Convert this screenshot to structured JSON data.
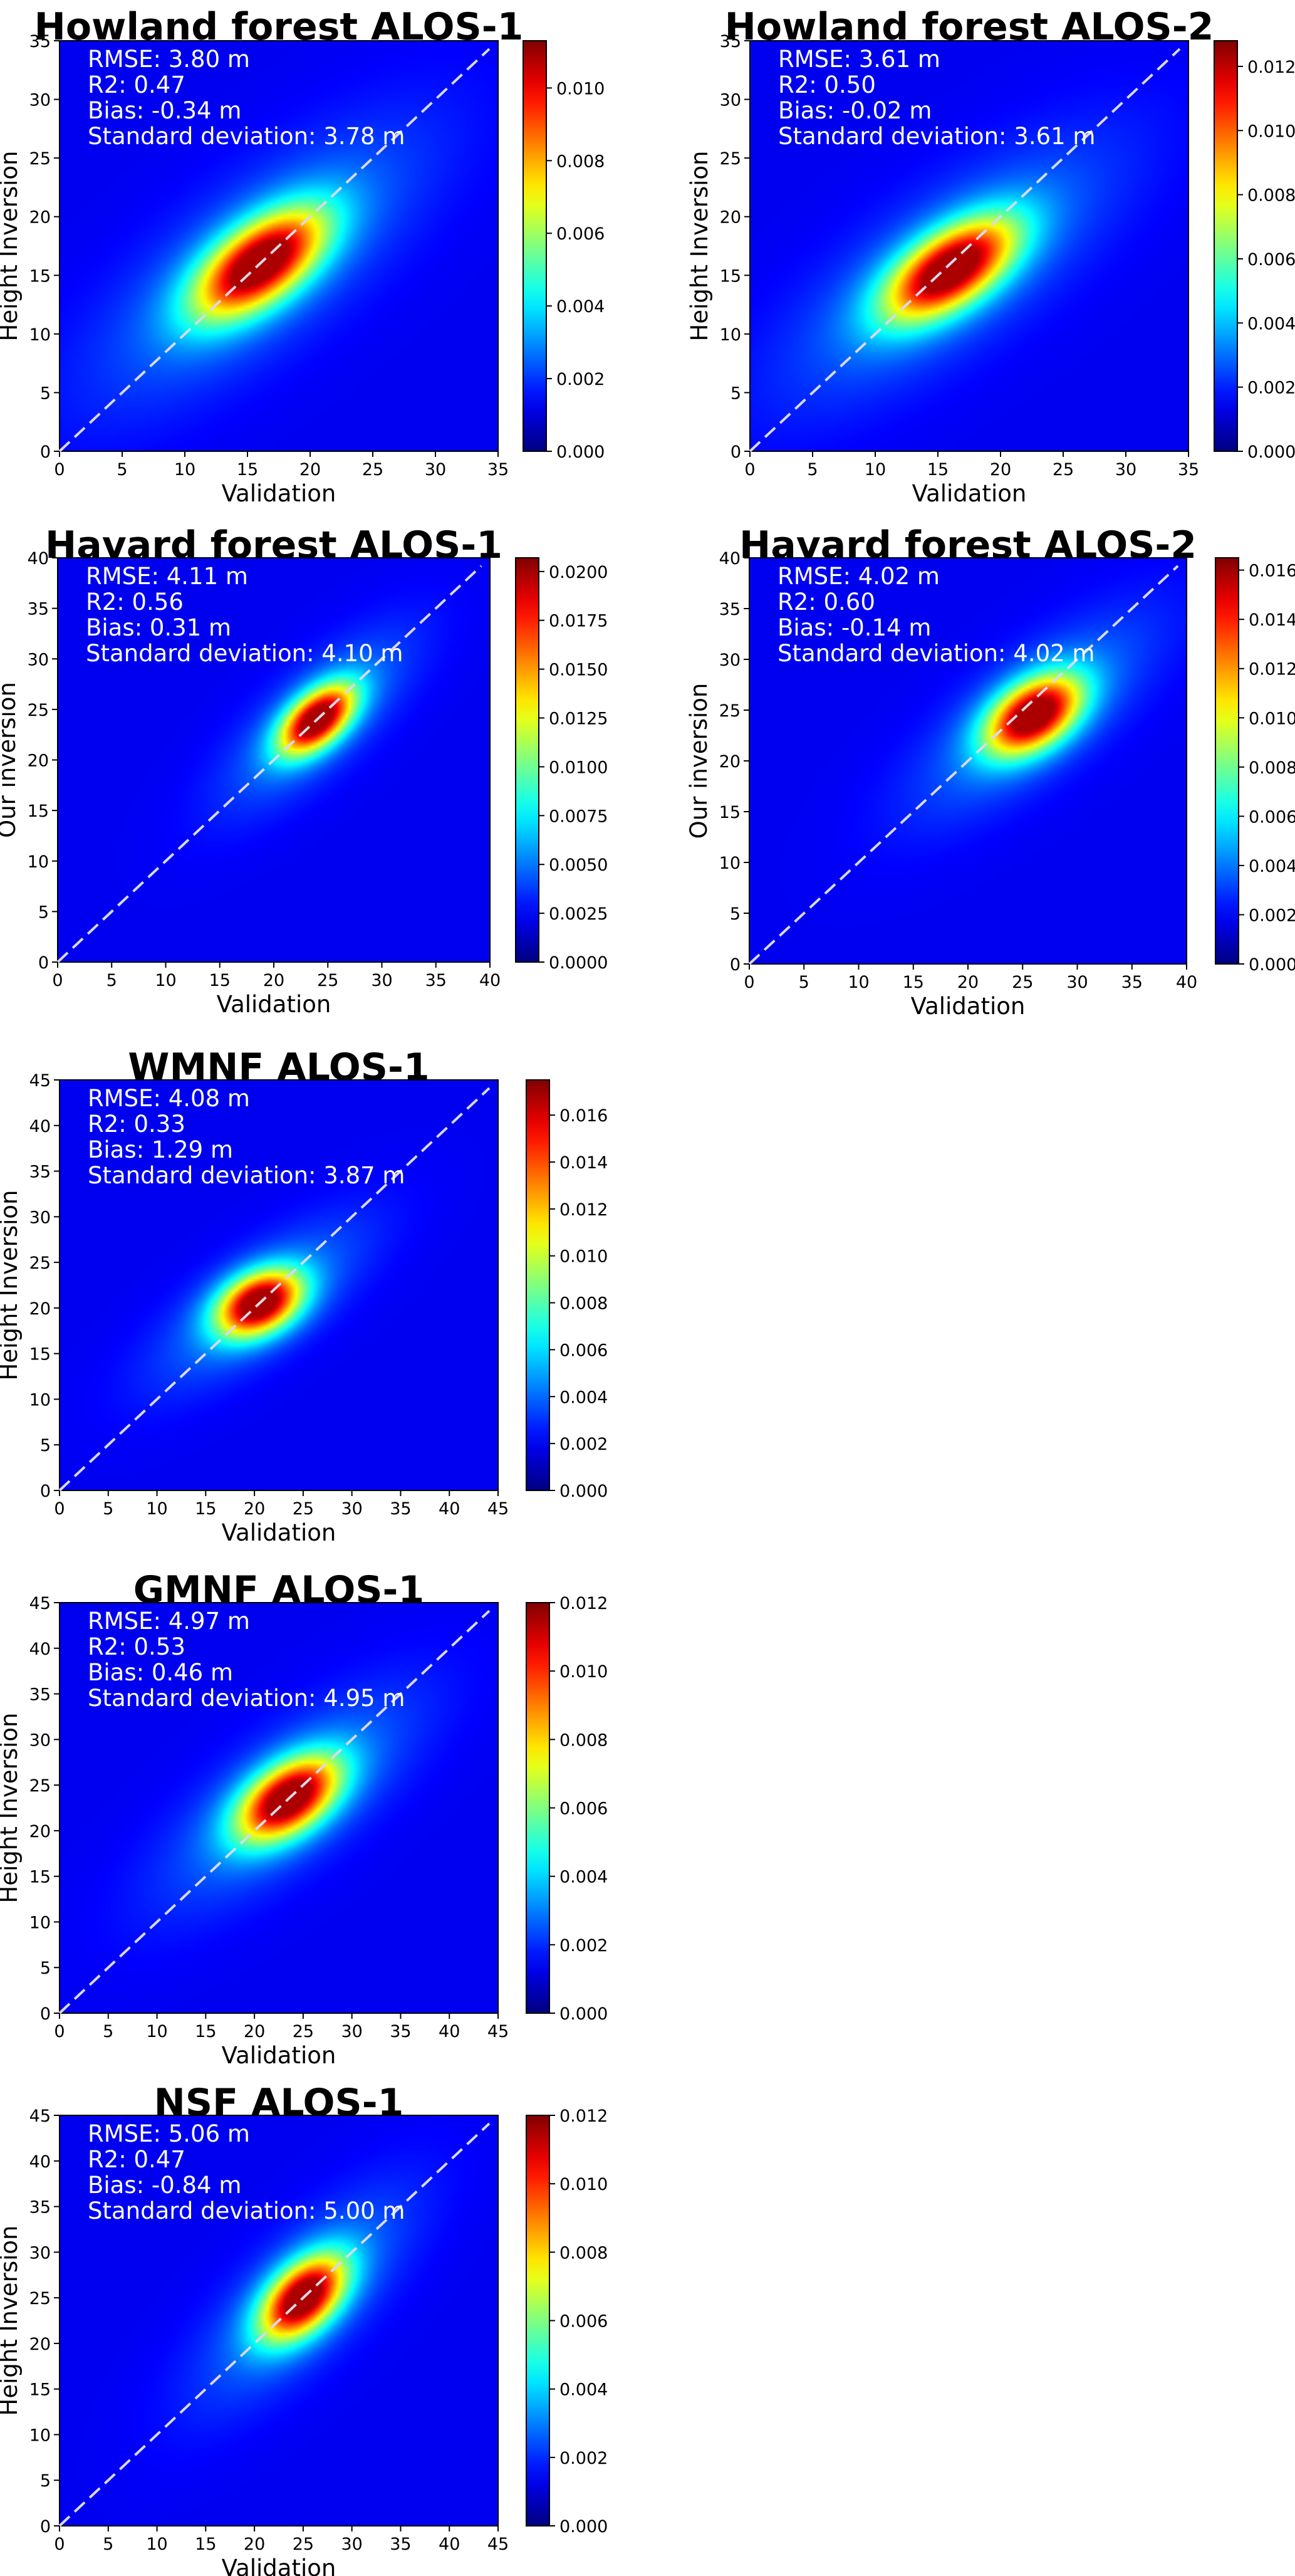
{
  "chart_data": [
    {
      "type": "heatmap",
      "title": "Howland forest ALOS-1",
      "xlabel": "Validation",
      "ylabel": "Height Inversion",
      "xlim": [
        0,
        35
      ],
      "ylim": [
        0,
        35
      ],
      "xticks": [
        "0",
        "5",
        "10",
        "15",
        "20",
        "25",
        "30",
        "35"
      ],
      "yticks": [
        "0",
        "5",
        "10",
        "15",
        "20",
        "25",
        "30",
        "35"
      ],
      "colorbar": {
        "min": 0,
        "max": 0.0113,
        "ticks": [
          "0.000",
          "0.002",
          "0.004",
          "0.006",
          "0.008",
          "0.010"
        ]
      },
      "stats": [
        "RMSE: 3.80 m",
        "R2: 0.47",
        "Bias: -0.34 m",
        "Standard deviation: 3.78 m"
      ],
      "identity_line": true,
      "density_peak": {
        "x": 16,
        "y": 16,
        "sx": 3.6,
        "sy": 3.2,
        "rho": 0.6
      }
    },
    {
      "type": "heatmap",
      "title": "Howland forest ALOS-2",
      "xlabel": "Validation",
      "ylabel": "Height Inversion",
      "xlim": [
        0,
        35
      ],
      "ylim": [
        0,
        35
      ],
      "xticks": [
        "0",
        "5",
        "10",
        "15",
        "20",
        "25",
        "30",
        "35"
      ],
      "yticks": [
        "0",
        "5",
        "10",
        "15",
        "20",
        "25",
        "30",
        "35"
      ],
      "colorbar": {
        "min": 0,
        "max": 0.0128,
        "ticks": [
          "0.000",
          "0.002",
          "0.004",
          "0.006",
          "0.008",
          "0.010",
          "0.012"
        ]
      },
      "stats": [
        "RMSE: 3.61 m",
        "R2: 0.50",
        "Bias: -0.02 m",
        "Standard deviation: 3.61 m"
      ],
      "identity_line": true,
      "density_peak": {
        "x": 16,
        "y": 15.5,
        "sx": 3.6,
        "sy": 3.0,
        "rho": 0.6
      }
    },
    {
      "type": "heatmap",
      "title": "Havard forest ALOS-1",
      "xlabel": "Validation",
      "ylabel": "Our inversion",
      "xlim": [
        0,
        40
      ],
      "ylim": [
        0,
        40
      ],
      "xticks": [
        "0",
        "5",
        "10",
        "15",
        "20",
        "25",
        "30",
        "35",
        "40"
      ],
      "yticks": [
        "0",
        "5",
        "10",
        "15",
        "20",
        "25",
        "30",
        "35",
        "40"
      ],
      "colorbar": {
        "min": 0,
        "max": 0.0207,
        "ticks": [
          "0.0000",
          "0.0025",
          "0.0050",
          "0.0075",
          "0.0100",
          "0.0125",
          "0.0150",
          "0.0175",
          "0.0200"
        ]
      },
      "stats": [
        "RMSE: 4.11 m",
        "R2: 0.56",
        "Bias: 0.31 m",
        "Standard deviation: 4.10 m"
      ],
      "identity_line": true,
      "density_peak": {
        "x": 24,
        "y": 24,
        "sx": 2.4,
        "sy": 2.4,
        "rho": 0.55
      }
    },
    {
      "type": "heatmap",
      "title": "Havard forest ALOS-2",
      "xlabel": "Validation",
      "ylabel": "Our inversion",
      "xlim": [
        0,
        40
      ],
      "ylim": [
        0,
        40
      ],
      "xticks": [
        "0",
        "5",
        "10",
        "15",
        "20",
        "25",
        "30",
        "35",
        "40"
      ],
      "yticks": [
        "0",
        "5",
        "10",
        "15",
        "20",
        "25",
        "30",
        "35",
        "40"
      ],
      "colorbar": {
        "min": 0,
        "max": 0.0165,
        "ticks": [
          "0.000",
          "0.002",
          "0.004",
          "0.006",
          "0.008",
          "0.010",
          "0.012",
          "0.014",
          "0.016"
        ]
      },
      "stats": [
        "RMSE: 4.02 m",
        "R2: 0.60",
        "Bias: -0.14 m",
        "Standard deviation: 4.02 m"
      ],
      "identity_line": true,
      "density_peak": {
        "x": 26,
        "y": 24.5,
        "sx": 3.0,
        "sy": 2.7,
        "rho": 0.45
      }
    },
    {
      "type": "heatmap",
      "title": "WMNF ALOS-1",
      "xlabel": "Validation",
      "ylabel": "Height Inversion",
      "xlim": [
        0,
        45
      ],
      "ylim": [
        0,
        45
      ],
      "xticks": [
        "0",
        "5",
        "10",
        "15",
        "20",
        "25",
        "30",
        "35",
        "40",
        "45"
      ],
      "yticks": [
        "0",
        "5",
        "10",
        "15",
        "20",
        "25",
        "30",
        "35",
        "40",
        "45"
      ],
      "colorbar": {
        "min": 0,
        "max": 0.0175,
        "ticks": [
          "0.000",
          "0.002",
          "0.004",
          "0.006",
          "0.008",
          "0.010",
          "0.012",
          "0.014",
          "0.016"
        ]
      },
      "stats": [
        "RMSE: 4.08 m",
        "R2: 0.33",
        "Bias: 1.29 m",
        "Standard deviation: 3.87 m"
      ],
      "identity_line": true,
      "density_peak": {
        "x": 20.5,
        "y": 20.5,
        "sx": 3.0,
        "sy": 2.5,
        "rho": 0.35
      }
    },
    {
      "type": "heatmap",
      "title": "GMNF ALOS-1",
      "xlabel": "Validation",
      "ylabel": "Height Inversion",
      "xlim": [
        0,
        45
      ],
      "ylim": [
        0,
        45
      ],
      "xticks": [
        "0",
        "5",
        "10",
        "15",
        "20",
        "25",
        "30",
        "35",
        "40",
        "45"
      ],
      "yticks": [
        "0",
        "5",
        "10",
        "15",
        "20",
        "25",
        "30",
        "35",
        "40",
        "45"
      ],
      "colorbar": {
        "min": 0,
        "max": 0.012,
        "ticks": [
          "0.000",
          "0.002",
          "0.004",
          "0.006",
          "0.008",
          "0.010",
          "0.012"
        ]
      },
      "stats": [
        "RMSE: 4.97 m",
        "R2: 0.53",
        "Bias: 0.46 m",
        "Standard deviation: 4.95 m"
      ],
      "identity_line": true,
      "density_peak": {
        "x": 23.5,
        "y": 23.5,
        "sx": 3.6,
        "sy": 3.2,
        "rho": 0.5
      }
    },
    {
      "type": "heatmap",
      "title": "NSF ALOS-1",
      "xlabel": "Validation",
      "ylabel": "Height Inversion",
      "xlim": [
        0,
        45
      ],
      "ylim": [
        0,
        45
      ],
      "xticks": [
        "0",
        "5",
        "10",
        "15",
        "20",
        "25",
        "30",
        "35",
        "40",
        "45"
      ],
      "yticks": [
        "0",
        "5",
        "10",
        "15",
        "20",
        "25",
        "30",
        "35",
        "40",
        "45"
      ],
      "colorbar": {
        "min": 0,
        "max": 0.012,
        "ticks": [
          "0.000",
          "0.002",
          "0.004",
          "0.006",
          "0.008",
          "0.010",
          "0.012"
        ]
      },
      "stats": [
        "RMSE: 5.06 m",
        "R2: 0.47",
        "Bias: -0.84 m",
        "Standard deviation: 5.00 m"
      ],
      "identity_line": true,
      "density_peak": {
        "x": 25,
        "y": 25,
        "sx": 3.0,
        "sy": 3.2,
        "rho": 0.5
      }
    }
  ],
  "colormap": "jet"
}
